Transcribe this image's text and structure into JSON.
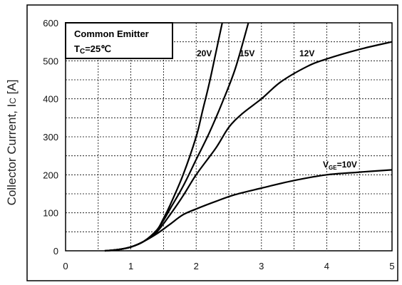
{
  "chart_data": {
    "type": "line",
    "ylabel_parts": [
      "Collector Current,  I",
      "C",
      " [A]"
    ],
    "xlabel": "",
    "xlim": [
      0,
      5
    ],
    "ylim": [
      0,
      600
    ],
    "xticks": [
      "0",
      "1",
      "2",
      "3",
      "4",
      "5"
    ],
    "yticks": [
      "0",
      "100",
      "200",
      "300",
      "400",
      "500",
      "600"
    ],
    "grid": "dashed, minor subdivisions",
    "annotation": {
      "line1": "Common Emitter",
      "line2_parts": [
        "T",
        "C",
        "=25℃"
      ]
    },
    "series": [
      {
        "name": "20V",
        "label_parts": [
          "20V"
        ],
        "x": [
          0.6,
          0.8,
          1.0,
          1.2,
          1.4,
          1.5,
          1.6,
          1.8,
          2.0,
          2.1,
          2.2,
          2.3,
          2.4
        ],
        "y": [
          0,
          3,
          10,
          25,
          55,
          85,
          120,
          200,
          300,
          370,
          440,
          520,
          600
        ]
      },
      {
        "name": "15V",
        "label_parts": [
          "15V"
        ],
        "x": [
          0.6,
          0.8,
          1.0,
          1.2,
          1.4,
          1.5,
          1.6,
          1.8,
          2.0,
          2.2,
          2.4,
          2.6,
          2.8
        ],
        "y": [
          0,
          3,
          10,
          25,
          55,
          80,
          110,
          170,
          240,
          310,
          390,
          480,
          600
        ]
      },
      {
        "name": "12V",
        "label_parts": [
          "12V"
        ],
        "x": [
          0.6,
          0.8,
          1.0,
          1.2,
          1.4,
          1.6,
          1.8,
          2.0,
          2.3,
          2.5,
          2.7,
          3.0,
          3.3,
          3.7,
          4.0,
          4.5,
          5.0
        ],
        "y": [
          0,
          3,
          10,
          25,
          50,
          95,
          145,
          200,
          270,
          325,
          360,
          400,
          445,
          485,
          505,
          530,
          550
        ]
      },
      {
        "name": "VGE=10V",
        "label_parts": [
          "V",
          "GE",
          "=10V"
        ],
        "x": [
          0.6,
          0.8,
          1.0,
          1.2,
          1.4,
          1.6,
          1.8,
          2.0,
          2.3,
          2.6,
          3.0,
          3.5,
          4.0,
          4.5,
          5.0
        ],
        "y": [
          0,
          3,
          10,
          25,
          45,
          70,
          95,
          110,
          130,
          148,
          165,
          185,
          200,
          207,
          213
        ]
      }
    ]
  }
}
